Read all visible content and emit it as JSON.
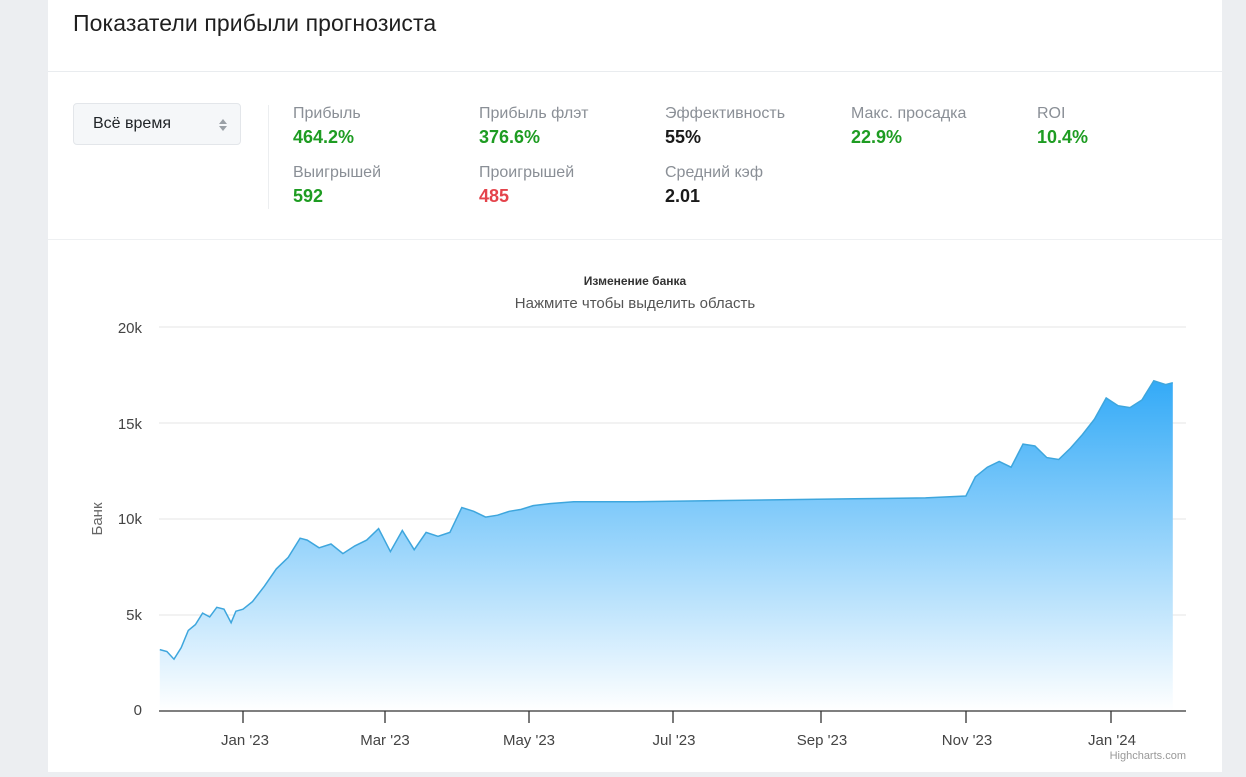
{
  "header": {
    "title": "Показатели прибыли прогнозиста"
  },
  "filter": {
    "selected": "Всё время",
    "icon": "sort-arrows-icon"
  },
  "stats": [
    {
      "label": "Прибыль",
      "value": "464.2%",
      "color": "#1e9c22"
    },
    {
      "label": "Прибыль флэт",
      "value": "376.6%",
      "color": "#1e9c22"
    },
    {
      "label": "Эффективность",
      "value": "55%",
      "color": "#1a1a1a"
    },
    {
      "label": "Макс. просадка",
      "value": "22.9%",
      "color": "#1e9c22"
    },
    {
      "label": "ROI",
      "value": "10.4%",
      "color": "#1e9c22"
    },
    {
      "label": "Выигрышей",
      "value": "592",
      "color": "#1e9c22"
    },
    {
      "label": "Проигрышей",
      "value": "485",
      "color": "#e4434b"
    },
    {
      "label": "Средний кэф",
      "value": "2.01",
      "color": "#1a1a1a"
    }
  ],
  "chart": {
    "title": "Изменение банка",
    "subtitle": "Нажмите чтобы выделить область",
    "ylabel": "Банк",
    "credits": "Highcharts.com",
    "yticks": [
      "0",
      "5k",
      "10k",
      "15k",
      "20k"
    ],
    "xticks": [
      "Jan '23",
      "Mar '23",
      "May '23",
      "Jul '23",
      "Sep '23",
      "Nov '23",
      "Jan '24"
    ],
    "colors": {
      "line": "#3ea6dd",
      "fill_top": "#33aaf7",
      "fill_bottom": "#ffffff"
    }
  },
  "chart_data": {
    "type": "area",
    "title": "Изменение банка",
    "subtitle": "Нажмите чтобы выделить область",
    "xlabel": "",
    "ylabel": "Банк",
    "ylim": [
      0,
      20000
    ],
    "yticks": [
      0,
      5000,
      10000,
      15000,
      20000
    ],
    "xticks": [
      "Jan '23",
      "Mar '23",
      "May '23",
      "Jul '23",
      "Sep '23",
      "Nov '23",
      "Jan '24"
    ],
    "grid": true,
    "legend": "none",
    "series": [
      {
        "name": "Банк",
        "x": [
          "2022-11-27",
          "2022-11-30",
          "2022-12-03",
          "2022-12-06",
          "2022-12-09",
          "2022-12-12",
          "2022-12-15",
          "2022-12-18",
          "2022-12-21",
          "2022-12-24",
          "2022-12-27",
          "2022-12-29",
          "2023-01-01",
          "2023-01-05",
          "2023-01-10",
          "2023-01-15",
          "2023-01-20",
          "2023-01-25",
          "2023-01-28",
          "2023-02-02",
          "2023-02-07",
          "2023-02-12",
          "2023-02-17",
          "2023-02-22",
          "2023-02-27",
          "2023-03-04",
          "2023-03-09",
          "2023-03-14",
          "2023-03-19",
          "2023-03-24",
          "2023-03-29",
          "2023-04-03",
          "2023-04-08",
          "2023-04-13",
          "2023-04-18",
          "2023-04-23",
          "2023-04-28",
          "2023-05-03",
          "2023-05-10",
          "2023-05-20",
          "2023-06-01",
          "2023-06-15",
          "2023-07-15",
          "2023-08-15",
          "2023-09-15",
          "2023-10-15",
          "2023-11-01",
          "2023-11-05",
          "2023-11-10",
          "2023-11-15",
          "2023-11-20",
          "2023-11-25",
          "2023-11-30",
          "2023-12-05",
          "2023-12-10",
          "2023-12-15",
          "2023-12-20",
          "2023-12-25",
          "2023-12-30",
          "2024-01-04",
          "2024-01-09",
          "2024-01-14",
          "2024-01-19",
          "2024-01-24",
          "2024-01-27"
        ],
        "values": [
          3200,
          3100,
          2700,
          3300,
          4200,
          4500,
          5100,
          4900,
          5400,
          5300,
          4600,
          5200,
          5300,
          5700,
          6500,
          7400,
          8000,
          9000,
          8900,
          8500,
          8700,
          8200,
          8600,
          8900,
          9500,
          8300,
          9400,
          8400,
          9300,
          9100,
          9300,
          10600,
          10400,
          10100,
          10200,
          10400,
          10500,
          10700,
          10800,
          10900,
          10900,
          10900,
          10950,
          11000,
          11050,
          11100,
          11200,
          12200,
          12700,
          13000,
          12700,
          13900,
          13800,
          13200,
          13100,
          13700,
          14400,
          15200,
          16300,
          15900,
          15800,
          16200,
          17200,
          17000,
          17100
        ]
      }
    ]
  }
}
